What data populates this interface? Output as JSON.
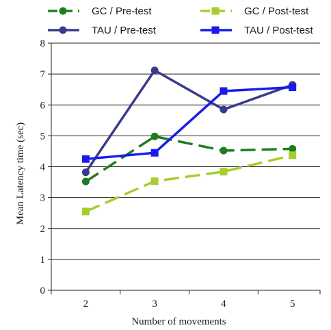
{
  "chart_data": {
    "type": "line",
    "title": "",
    "xlabel": "Number of movements",
    "ylabel": "Mean Latency time (sec)",
    "x": [
      2,
      3,
      4,
      5
    ],
    "x_tick_labels": [
      "2",
      "3",
      "4",
      "5"
    ],
    "ylim": [
      0,
      8
    ],
    "y_ticks": [
      0,
      1,
      2,
      3,
      4,
      5,
      6,
      7,
      8
    ],
    "y_tick_labels": [
      "0",
      "1",
      "2",
      "3",
      "4",
      "5",
      "6",
      "7",
      "8"
    ],
    "grid": "horizontal",
    "legend_position": "top",
    "series": [
      {
        "name": "GC / Pre-test",
        "values": [
          3.52,
          4.98,
          4.52,
          4.58
        ],
        "color": "#1e7d1e",
        "line_style": "dashed",
        "marker": "circle"
      },
      {
        "name": "GC / Post-test",
        "values": [
          2.55,
          3.53,
          3.84,
          4.37
        ],
        "color": "#a9cc2e",
        "line_style": "dashed",
        "marker": "square"
      },
      {
        "name": "TAU / Pre-test",
        "values": [
          3.82,
          7.12,
          5.85,
          6.65
        ],
        "color": "#3a3a8c",
        "line_style": "solid",
        "marker": "circle"
      },
      {
        "name": "TAU / Post-test",
        "values": [
          4.25,
          4.45,
          6.45,
          6.57
        ],
        "color": "#1a1aee",
        "line_style": "solid",
        "marker": "square"
      }
    ]
  }
}
